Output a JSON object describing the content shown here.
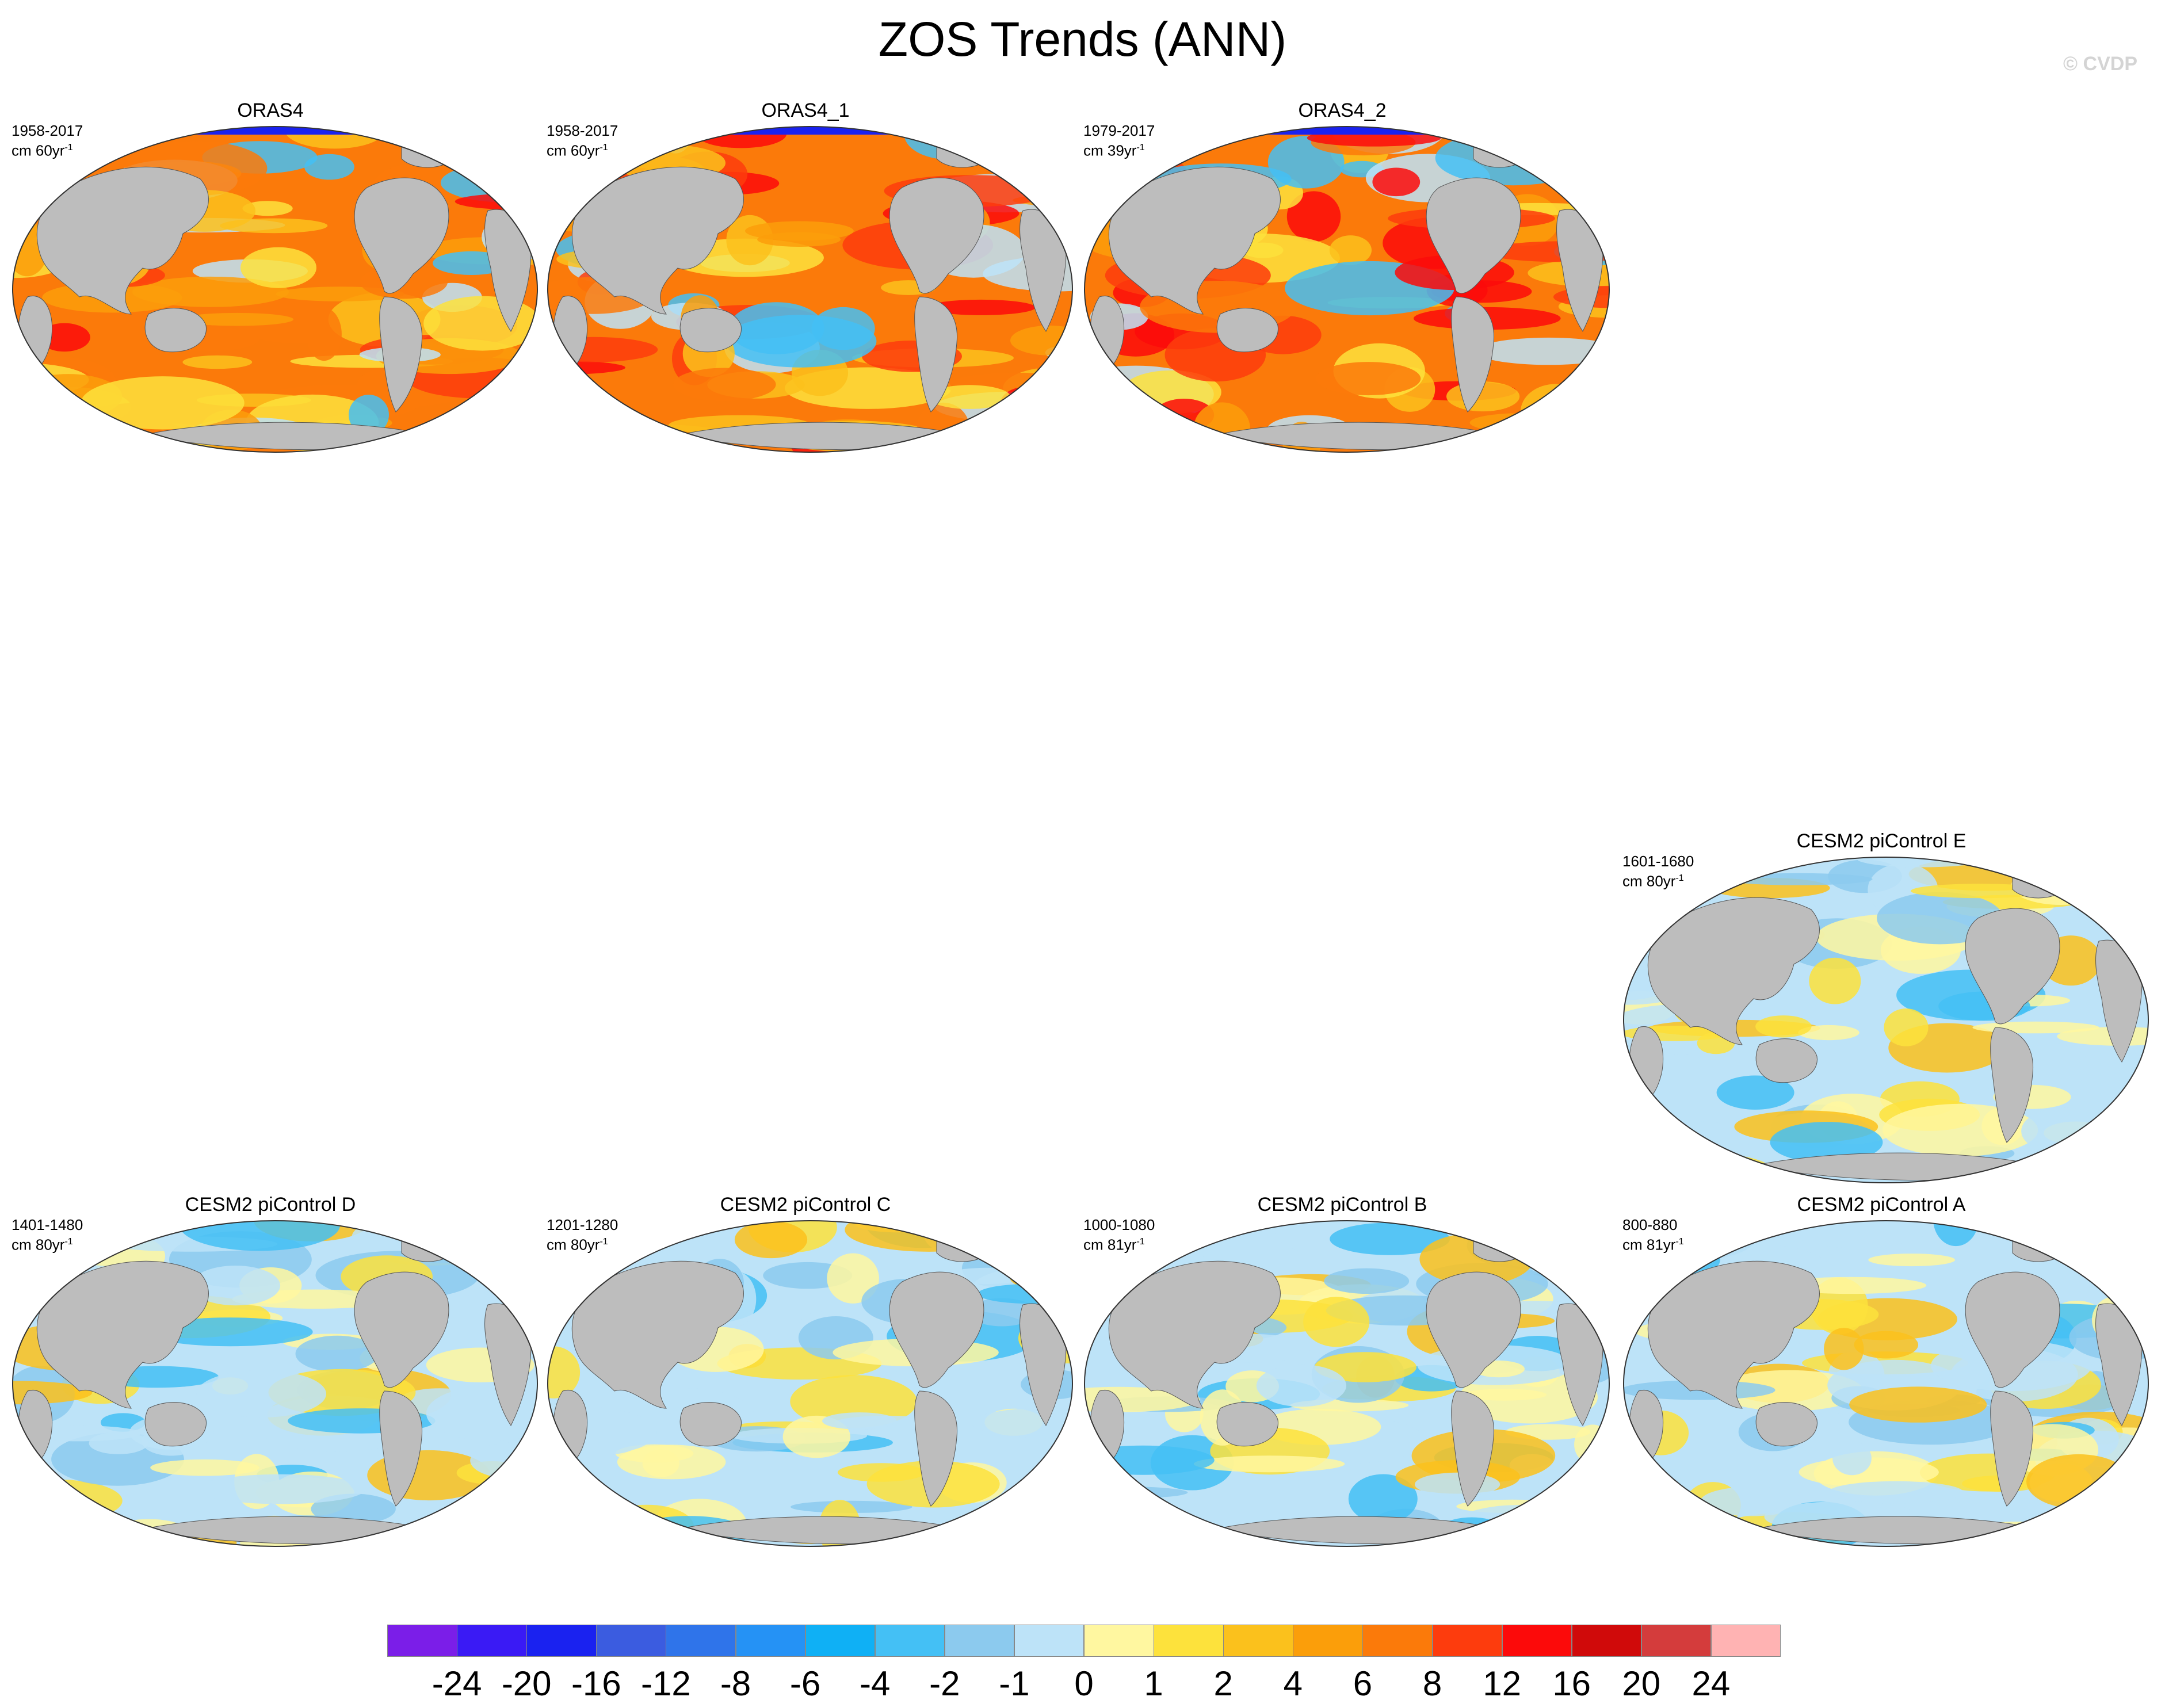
{
  "title": "ZOS Trends (ANN)",
  "copyright": "© CVDP",
  "panels": [
    {
      "id": "oras4",
      "title": "ORAS4",
      "years": "1958-2017",
      "unit": "cm 60yr",
      "exp": "-1",
      "style": "reanalysis"
    },
    {
      "id": "oras4-1",
      "title": "ORAS4_1",
      "years": "1958-2017",
      "unit": "cm 60yr",
      "exp": "-1",
      "style": "reanalysis"
    },
    {
      "id": "oras4-2",
      "title": "ORAS4_2",
      "years": "1979-2017",
      "unit": "cm 39yr",
      "exp": "-1",
      "style": "reanalysis"
    },
    {
      "id": "cesm2-e",
      "title": "CESM2 piControl E",
      "years": "1601-1680",
      "unit": "cm 80yr",
      "exp": "-1",
      "style": "control"
    },
    {
      "id": "cesm2-d",
      "title": "CESM2 piControl D",
      "years": "1401-1480",
      "unit": "cm 80yr",
      "exp": "-1",
      "style": "control"
    },
    {
      "id": "cesm2-c",
      "title": "CESM2 piControl C",
      "years": "1201-1280",
      "unit": "cm 80yr",
      "exp": "-1",
      "style": "control"
    },
    {
      "id": "cesm2-b",
      "title": "CESM2 piControl B",
      "years": "1000-1080",
      "unit": "cm 81yr",
      "exp": "-1",
      "style": "control"
    },
    {
      "id": "cesm2-a",
      "title": "CESM2 piControl A",
      "years": "800-880",
      "unit": "cm 81yr",
      "exp": "-1",
      "style": "control"
    }
  ],
  "colorbar": {
    "colors": [
      "#7b1ee8",
      "#3a1af5",
      "#1a22f0",
      "#3b5ce0",
      "#2f74ea",
      "#2592f5",
      "#0fb0f5",
      "#44c0f5",
      "#8ccaee",
      "#bde3f8",
      "#fff7a0",
      "#fde23c",
      "#fbc11c",
      "#fb9e0a",
      "#fb7a0a",
      "#fd3c0d",
      "#fc0a0a",
      "#d00a0a",
      "#d43c3c",
      "#ffb3b3"
    ],
    "labels": [
      "-24",
      "-20",
      "-16",
      "-12",
      "-8",
      "-6",
      "-4",
      "-2",
      "-1",
      "0",
      "1",
      "2",
      "4",
      "6",
      "8",
      "12",
      "16",
      "20",
      "24"
    ]
  },
  "palette": {
    "land": "#bdbdbd",
    "reanalysis_base": "#fb7a0a",
    "control_base": "#bde3f8"
  }
}
